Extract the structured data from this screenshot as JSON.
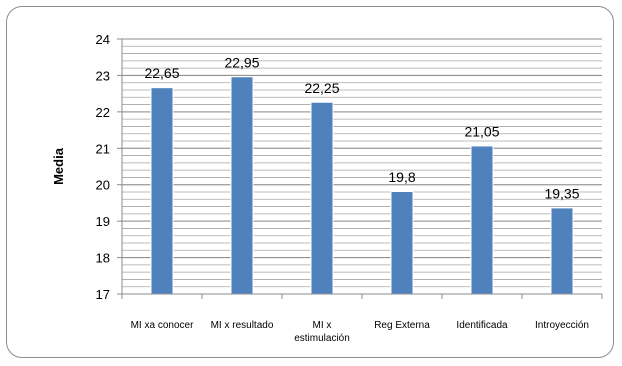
{
  "chart_data": {
    "type": "bar",
    "categories": [
      [
        "MI xa conocer"
      ],
      [
        "MI x resultado"
      ],
      [
        "MI x",
        "estimulación"
      ],
      [
        "Reg Externa"
      ],
      [
        "Identificada"
      ],
      [
        "Introyección"
      ]
    ],
    "values": [
      22.65,
      22.95,
      22.25,
      19.8,
      21.05,
      19.35
    ],
    "data_labels": [
      "22,65",
      "22,95",
      "22,25",
      "19,8",
      "21,05",
      "19,35"
    ],
    "ylabel": "Media",
    "ylim": [
      17,
      24
    ],
    "yticks": [
      17,
      18,
      19,
      20,
      21,
      22,
      23,
      24
    ],
    "grid": true,
    "bar_color": "#4f81bd",
    "grid_color": "#a6a6a6"
  }
}
